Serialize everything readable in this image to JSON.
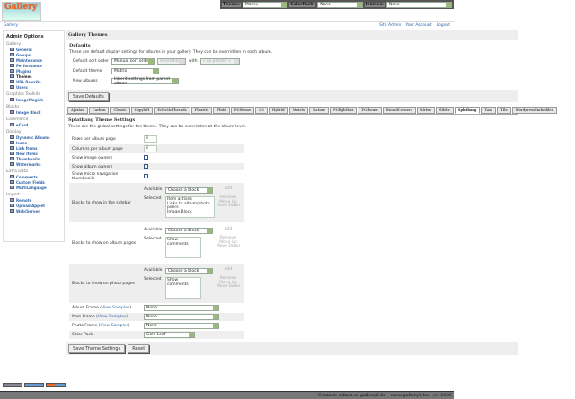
{
  "topbar": {
    "theme_label": "Theme:",
    "theme_value": "Matrix",
    "colorpack_label": "ColorPack:",
    "colorpack_value": "None",
    "frames_label": "Frames:",
    "frames_value": "None"
  },
  "logo_text": "Gallery",
  "breadcrumb": "Gallery",
  "header_links": [
    "Site Admin",
    "Your Account",
    "Logout"
  ],
  "sidebar": {
    "title": "Admin Options",
    "groups": [
      {
        "name": "Gallery",
        "items": [
          "General",
          "Groups",
          "Maintenance",
          "Performance",
          "Plugins",
          "Themes",
          "URL Rewrite",
          "Users"
        ]
      },
      {
        "name": "Graphics Toolkits",
        "items": [
          "ImageMagick"
        ]
      },
      {
        "name": "Blocks",
        "items": [
          "Image Block"
        ]
      },
      {
        "name": "Commerce",
        "items": [
          "eCard"
        ]
      },
      {
        "name": "Display",
        "items": [
          "Dynamic Albums",
          "Icons",
          "Link Items",
          "New Items",
          "Thumbnails",
          "Watermarks"
        ]
      },
      {
        "name": "Extra Data",
        "items": [
          "Comments",
          "Custom Fields",
          "MultiLanguage"
        ]
      },
      {
        "name": "Import",
        "items": [
          "Remote",
          "Upload Applet",
          "Web/Server"
        ]
      }
    ],
    "current": "Themes"
  },
  "page_title": "Gallery Themes",
  "defaults": {
    "heading": "Defaults",
    "description": "These are default display settings for albums in your gallery. They can be overridden in each album.",
    "sort_label": "Default sort order",
    "sort_value": "Manual sort order",
    "direction_value": "Ascending",
    "with_label": "with",
    "presort_value": "« no presort »",
    "theme_label": "Default theme",
    "theme_value": "Matrix",
    "new_label": "New albums",
    "new_value": "Inherit settings from parent album",
    "save_button": "Save Defaults"
  },
  "tabs": [
    "Ajaxian",
    "Carbon",
    "Classic",
    "Copyleft",
    "EclecticThreads",
    "Floatrix",
    "Fluid",
    "PGtheme",
    "G3",
    "Hybrid",
    "Matrix",
    "Nature",
    "PGlightbox",
    "PGtheme",
    "RoundCorners",
    "Siriux",
    "Slider",
    "Splatbang",
    "Tass",
    "Tile",
    "WordpressEmbedded"
  ],
  "active_tab": "Splatbang",
  "theme_settings": {
    "heading": "Splatbang Theme Settings",
    "description": "These are the global settings for the theme. They can be overridden at the album level.",
    "rows_label": "Rows per album page",
    "rows_value": "3",
    "cols_label": "Columns per album page",
    "cols_value": "3",
    "image_owners_label": "Show image owners",
    "image_owners": false,
    "album_owners_label": "Show album owners",
    "album_owners": true,
    "micro_nav_label": "Show micro navigation thumbnails",
    "micro_nav": false,
    "available_label": "Available",
    "selected_label": "Selected",
    "choose_block": "Choose a block",
    "add": "Add",
    "remove": "Remove",
    "move_up": "Move Up",
    "move_down": "Move Down",
    "sidebar_blocks_label": "Blocks to show in the sidebar",
    "sidebar_blocks": [
      "Item actions",
      "Links to album/photo peers",
      "Image Block"
    ],
    "album_blocks_label": "Blocks to show on album pages",
    "album_blocks": [
      "Show comments"
    ],
    "photo_blocks_label": "Blocks to show on photo pages",
    "photo_blocks": [
      "Show comments"
    ],
    "view_samples": "View Samples",
    "album_frame_label": "Album Frame",
    "album_frame": "None",
    "item_frame_label": "Item Frame",
    "item_frame": "None",
    "photo_frame_label": "Photo Frame",
    "photo_frame": "None",
    "color_pack_label": "Color Pack",
    "color_pack": "Gold Leaf",
    "save_button": "Save Theme Settings",
    "reset_button": "Reset"
  },
  "footer": "Contact: admin at gallery2.hu - www.gallery2.hu - (c) 2006"
}
